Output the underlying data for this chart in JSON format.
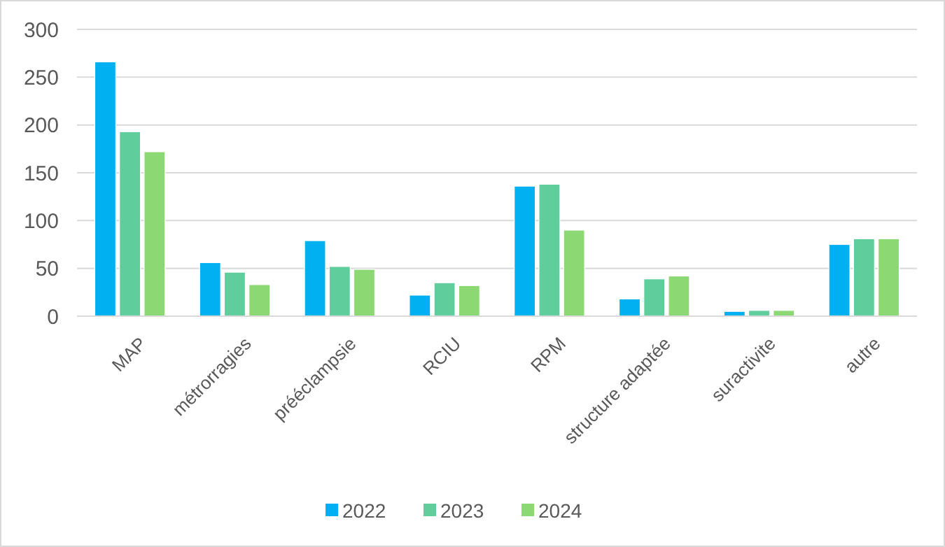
{
  "chart_data": {
    "type": "bar",
    "categories": [
      "MAP",
      "métrorragies",
      "prééclampsie",
      "RCIU",
      "RPM",
      "structure adaptée",
      "suractivite",
      "autre"
    ],
    "series": [
      {
        "name": "2022",
        "color": "#00b0f0",
        "values": [
          266,
          56,
          79,
          22,
          136,
          18,
          5,
          75
        ]
      },
      {
        "name": "2023",
        "color": "#5fce9c",
        "values": [
          193,
          46,
          52,
          35,
          138,
          39,
          6,
          81
        ]
      },
      {
        "name": "2024",
        "color": "#8cd872",
        "values": [
          172,
          33,
          49,
          32,
          90,
          42,
          6,
          81
        ]
      }
    ],
    "ylim": [
      0,
      300
    ],
    "yticks": [
      0,
      50,
      100,
      150,
      200,
      250,
      300
    ],
    "grid": "y",
    "legend": "bottom"
  }
}
